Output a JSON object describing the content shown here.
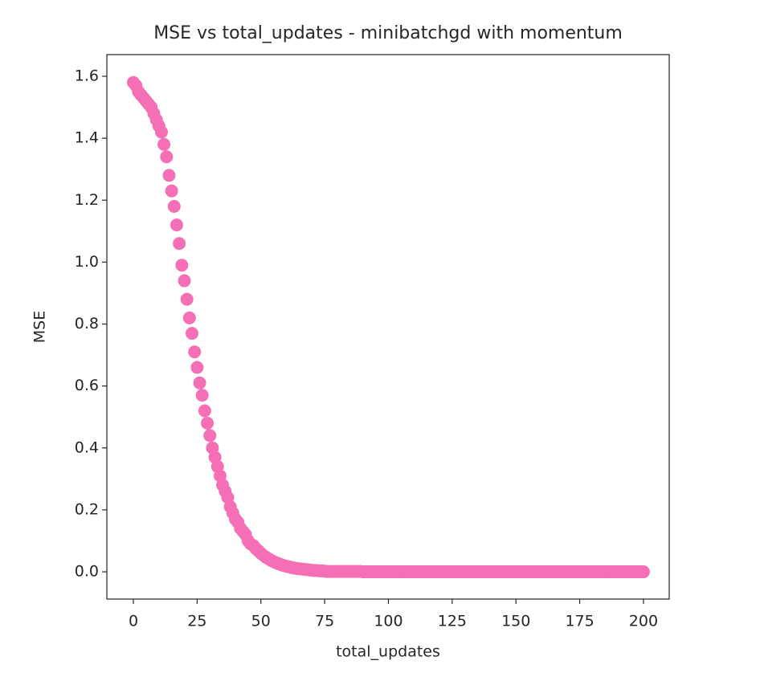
{
  "chart_data": {
    "type": "scatter",
    "title": "MSE vs total_updates - minibatchgd with momentum",
    "x_label": "total_updates",
    "y_label": "MSE",
    "color": "#f46fb5",
    "x": [
      0,
      1,
      2,
      3,
      4,
      5,
      6,
      7,
      8,
      9,
      10,
      11,
      12,
      13,
      14,
      15,
      16,
      17,
      18,
      19,
      20,
      21,
      22,
      23,
      24,
      25,
      26,
      27,
      28,
      29,
      30,
      31,
      32,
      33,
      34,
      35,
      36,
      37,
      38,
      39,
      40,
      41,
      42,
      43,
      44,
      45,
      46,
      47,
      48,
      49,
      50,
      51,
      52,
      53,
      54,
      55,
      56,
      57,
      58,
      59,
      60,
      61,
      62,
      63,
      64,
      65,
      66,
      67,
      68,
      69,
      70,
      71,
      72,
      73,
      74,
      75,
      76,
      77,
      78,
      79,
      80,
      81,
      82,
      83,
      84,
      85,
      86,
      87,
      88,
      89,
      90,
      91,
      92,
      93,
      94,
      95,
      96,
      97,
      98,
      99,
      100,
      101,
      102,
      103,
      104,
      105,
      106,
      107,
      108,
      109,
      110,
      111,
      112,
      113,
      114,
      115,
      116,
      117,
      118,
      119,
      120,
      121,
      122,
      123,
      124,
      125,
      126,
      127,
      128,
      129,
      130,
      131,
      132,
      133,
      134,
      135,
      136,
      137,
      138,
      139,
      140,
      141,
      142,
      143,
      144,
      145,
      146,
      147,
      148,
      149,
      150,
      151,
      152,
      153,
      154,
      155,
      156,
      157,
      158,
      159,
      160,
      161,
      162,
      163,
      164,
      165,
      166,
      167,
      168,
      169,
      170,
      171,
      172,
      173,
      174,
      175,
      176,
      177,
      178,
      179,
      180,
      181,
      182,
      183,
      184,
      185,
      186,
      187,
      188,
      189,
      190,
      191,
      192,
      193,
      194,
      195,
      196,
      197,
      198,
      199,
      200
    ],
    "values": [
      1.58,
      1.57,
      1.55,
      1.54,
      1.53,
      1.52,
      1.51,
      1.5,
      1.48,
      1.46,
      1.44,
      1.42,
      1.38,
      1.34,
      1.28,
      1.23,
      1.18,
      1.12,
      1.06,
      0.99,
      0.94,
      0.88,
      0.82,
      0.77,
      0.71,
      0.66,
      0.61,
      0.57,
      0.52,
      0.48,
      0.44,
      0.4,
      0.37,
      0.34,
      0.31,
      0.28,
      0.26,
      0.24,
      0.21,
      0.19,
      0.17,
      0.16,
      0.14,
      0.13,
      0.12,
      0.1,
      0.09,
      0.085,
      0.075,
      0.068,
      0.06,
      0.053,
      0.047,
      0.042,
      0.037,
      0.033,
      0.029,
      0.026,
      0.023,
      0.02,
      0.018,
      0.016,
      0.014,
      0.012,
      0.011,
      0.01,
      0.009,
      0.008,
      0.007,
      0.006,
      0.005,
      0.004,
      0.004,
      0.003,
      0.003,
      0.002,
      0.001,
      0.001,
      0.001,
      0.001,
      0.001,
      0.001,
      0.001,
      0.001,
      0.001,
      0.001,
      0.001,
      0.001,
      0.001,
      0.001,
      0,
      0,
      0,
      0,
      0,
      0,
      0,
      0,
      0,
      0,
      0,
      0,
      0,
      0,
      0,
      0,
      0,
      0,
      0,
      0,
      0,
      0,
      0,
      0,
      0,
      0,
      0,
      0,
      0,
      0,
      0,
      0,
      0,
      0,
      0,
      0,
      0,
      0,
      0,
      0,
      0,
      0,
      0,
      0,
      0,
      0,
      0,
      0,
      0,
      0,
      0,
      0,
      0,
      0,
      0,
      0,
      0,
      0,
      0,
      0,
      0,
      0,
      0,
      0,
      0,
      0,
      0,
      0,
      0,
      0,
      0,
      0,
      0,
      0,
      0,
      0,
      0,
      0,
      0,
      0,
      0,
      0,
      0,
      0,
      0,
      0,
      0,
      0,
      0,
      0,
      0,
      0,
      0,
      0,
      0,
      0,
      0,
      0,
      0,
      0,
      0,
      0,
      0,
      0,
      0,
      0,
      0,
      0,
      0,
      0,
      0
    ],
    "xlim": [
      -10.4,
      210.1
    ],
    "ylim": [
      -0.088,
      1.67
    ],
    "xticks": [
      0,
      25,
      50,
      75,
      100,
      125,
      150,
      175,
      200
    ],
    "yticks": [
      {
        "value": 0,
        "label": "0.0"
      },
      0.2,
      0.4,
      0.6,
      0.8,
      {
        "value": 1,
        "label": "1.0"
      },
      1.2,
      1.4,
      1.6
    ],
    "grid": false
  }
}
